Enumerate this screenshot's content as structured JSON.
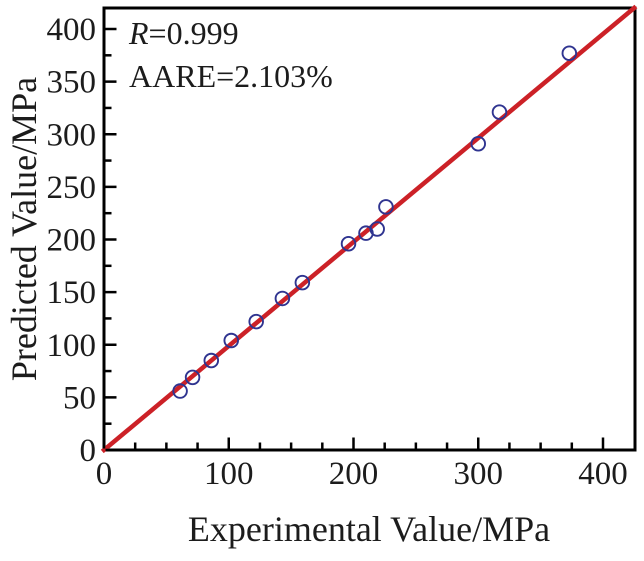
{
  "figure": {
    "annotation_r_symbol": "R",
    "annotation_r_rest": "=0.999",
    "annotation_aare": "AARE=2.103%"
  },
  "chart_data": {
    "type": "scatter",
    "title": "",
    "xlabel": "Experimental Value/MPa",
    "ylabel": "Predicted Value/MPa",
    "xlim": [
      0,
      425
    ],
    "ylim": [
      0,
      420
    ],
    "x_major_ticks": [
      0,
      100,
      200,
      300,
      400
    ],
    "y_major_ticks": [
      0,
      50,
      100,
      150,
      200,
      250,
      300,
      350,
      400
    ],
    "minor_tick_interval": 25,
    "grid": false,
    "legend_position": "none",
    "annotations": [
      "R=0.999",
      "AARE=2.103%"
    ],
    "series": [
      {
        "name": "predicted-vs-experimental",
        "marker": "open-circle",
        "points": [
          [
            61,
            56
          ],
          [
            71,
            69
          ],
          [
            86,
            85
          ],
          [
            102,
            104
          ],
          [
            122,
            122
          ],
          [
            143,
            144
          ],
          [
            159,
            159
          ],
          [
            196,
            196
          ],
          [
            210,
            206
          ],
          [
            219,
            210
          ],
          [
            226,
            231
          ],
          [
            300,
            291
          ],
          [
            317,
            321
          ],
          [
            373,
            377
          ]
        ]
      }
    ],
    "reference_line": {
      "type": "identity",
      "description": "y = x line from origin to top-right corner",
      "from": [
        0,
        0
      ],
      "to": [
        425,
        420
      ]
    },
    "colors": {
      "reference_line": "#cc2127",
      "marker_stroke": "#2f3490",
      "axis": "#000000",
      "text": "#1c1c1c",
      "background": "#ffffff"
    }
  }
}
